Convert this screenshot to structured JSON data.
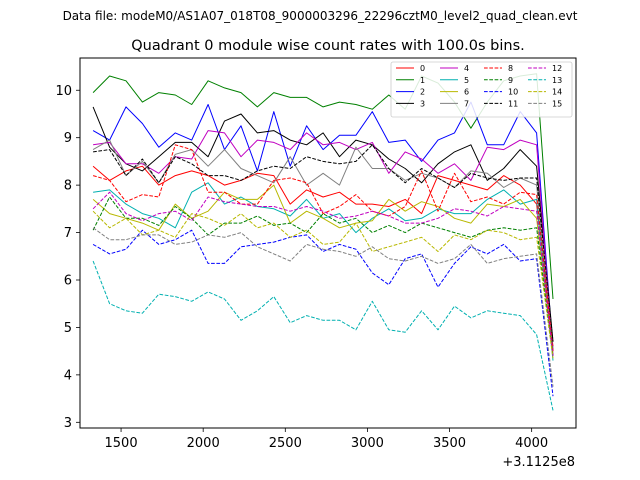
{
  "header": {
    "suptitle": "Data file: modeM0/AS1A07_018T08_9000003296_22296cztM0_level2_quad_clean.evt"
  },
  "chart_data": {
    "type": "line",
    "title": "Quadrant 0 module wise count rates with 100.0s bins.",
    "xlabel": "",
    "ylabel": "",
    "x_offset_label": "+3.1125e8",
    "xlim": [
      1250,
      4270
    ],
    "ylim": [
      2.88,
      10.68
    ],
    "xticks": [
      1500,
      2000,
      2500,
      3000,
      3500,
      4000
    ],
    "yticks": [
      3,
      4,
      5,
      6,
      7,
      8,
      9,
      10
    ],
    "grid": false,
    "legend_position": "top-right",
    "legend_columns": 4,
    "x": [
      1330,
      1430,
      1530,
      1630,
      1730,
      1830,
      1930,
      2030,
      2130,
      2230,
      2330,
      2430,
      2530,
      2630,
      2730,
      2830,
      2930,
      3030,
      3130,
      3230,
      3330,
      3430,
      3530,
      3630,
      3730,
      3830,
      3930,
      4030,
      4130
    ],
    "series": [
      {
        "name": "0",
        "color": "#ff0000",
        "dash": "solid",
        "values": [
          8.4,
          8.1,
          8.3,
          8.4,
          8.0,
          8.2,
          8.3,
          8.2,
          8.0,
          8.1,
          8.25,
          8.2,
          7.6,
          7.9,
          7.75,
          7.85,
          7.6,
          7.6,
          7.55,
          7.7,
          7.4,
          8.2,
          8.1,
          8.0,
          7.9,
          8.2,
          8.0,
          7.6,
          4.6
        ]
      },
      {
        "name": "1",
        "color": "#008000",
        "dash": "solid",
        "values": [
          9.95,
          10.3,
          10.2,
          9.75,
          9.95,
          9.9,
          9.7,
          10.2,
          10.05,
          9.95,
          9.65,
          9.95,
          9.85,
          9.85,
          9.65,
          9.75,
          9.7,
          9.6,
          9.9,
          9.6,
          10.3,
          10.15,
          9.75,
          9.2,
          9.75,
          10.2,
          10.3,
          10.35,
          5.6
        ]
      },
      {
        "name": "2",
        "color": "#0000ff",
        "dash": "solid",
        "values": [
          9.15,
          8.95,
          9.65,
          9.3,
          8.8,
          9.1,
          8.95,
          9.7,
          8.75,
          9.25,
          8.3,
          9.55,
          8.4,
          9.25,
          8.75,
          9.05,
          9.05,
          9.55,
          8.9,
          8.95,
          8.5,
          8.95,
          9.1,
          9.75,
          8.85,
          8.85,
          9.55,
          9.1,
          4.5
        ]
      },
      {
        "name": "3",
        "color": "#000000",
        "dash": "solid",
        "values": [
          9.65,
          8.8,
          8.45,
          8.3,
          8.6,
          8.9,
          8.9,
          8.6,
          9.35,
          9.5,
          9.1,
          9.15,
          8.95,
          8.85,
          9.1,
          8.6,
          8.95,
          8.85,
          8.55,
          8.35,
          8.05,
          8.45,
          8.7,
          8.85,
          8.1,
          8.35,
          8.75,
          8.4,
          4.7
        ]
      },
      {
        "name": "4",
        "color": "#c000c0",
        "dash": "solid",
        "values": [
          8.85,
          8.9,
          8.45,
          8.45,
          8.25,
          8.6,
          8.55,
          9.15,
          9.1,
          8.6,
          8.95,
          8.9,
          8.75,
          9.1,
          8.85,
          8.9,
          8.75,
          8.9,
          8.25,
          8.7,
          8.55,
          8.25,
          8.45,
          8.1,
          8.8,
          8.75,
          8.95,
          8.85,
          4.4
        ]
      },
      {
        "name": "5",
        "color": "#00b0b0",
        "dash": "solid",
        "values": [
          7.85,
          7.9,
          7.6,
          7.4,
          7.3,
          7.1,
          7.85,
          8.05,
          7.6,
          7.75,
          7.55,
          7.5,
          7.35,
          7.7,
          7.3,
          7.4,
          7.0,
          7.3,
          7.5,
          7.25,
          7.3,
          7.5,
          7.4,
          7.4,
          7.7,
          7.9,
          7.6,
          7.7,
          4.3
        ]
      },
      {
        "name": "6",
        "color": "#b8b800",
        "dash": "solid",
        "values": [
          7.7,
          7.4,
          7.3,
          7.2,
          7.05,
          7.6,
          7.3,
          7.45,
          7.85,
          7.7,
          7.7,
          8.0,
          7.2,
          7.45,
          7.3,
          7.1,
          7.2,
          7.25,
          7.7,
          7.45,
          7.65,
          7.55,
          7.3,
          7.2,
          7.6,
          7.55,
          7.7,
          7.3,
          4.5
        ]
      },
      {
        "name": "7",
        "color": "#808080",
        "dash": "solid",
        "values": [
          8.75,
          8.95,
          8.2,
          8.5,
          8.05,
          8.65,
          8.75,
          8.4,
          8.75,
          8.35,
          8.2,
          8.05,
          8.6,
          8.0,
          8.25,
          8.0,
          8.8,
          8.35,
          8.35,
          8.1,
          8.25,
          8.15,
          7.95,
          8.3,
          8.25,
          7.95,
          8.15,
          8.0,
          4.5
        ]
      },
      {
        "name": "8",
        "color": "#ff0000",
        "dash": "dashed",
        "values": [
          8.2,
          8.1,
          7.65,
          7.8,
          7.75,
          8.85,
          8.75,
          7.85,
          7.85,
          7.6,
          7.6,
          8.1,
          8.15,
          8.05,
          7.4,
          7.55,
          7.8,
          7.45,
          7.35,
          7.55,
          8.3,
          7.45,
          8.25,
          7.65,
          7.75,
          7.6,
          7.85,
          7.8,
          4.5
        ]
      },
      {
        "name": "9",
        "color": "#008000",
        "dash": "dashed",
        "values": [
          7.05,
          7.75,
          7.3,
          7.3,
          7.15,
          7.55,
          7.3,
          6.95,
          7.2,
          7.2,
          7.35,
          7.15,
          7.2,
          7.0,
          7.4,
          7.2,
          7.3,
          7.0,
          7.15,
          7.0,
          7.2,
          7.1,
          7.0,
          6.9,
          7.05,
          7.1,
          7.05,
          7.1,
          4.4
        ]
      },
      {
        "name": "10",
        "color": "#0000ff",
        "dash": "dashed",
        "values": [
          6.75,
          6.55,
          6.65,
          7.05,
          6.75,
          6.85,
          7.05,
          6.35,
          6.35,
          6.7,
          6.75,
          6.8,
          6.9,
          6.95,
          6.6,
          6.75,
          6.65,
          6.15,
          5.9,
          6.45,
          6.55,
          5.85,
          6.35,
          6.7,
          6.55,
          6.75,
          6.4,
          6.45,
          3.55
        ]
      },
      {
        "name": "11",
        "color": "#000000",
        "dash": "dashed",
        "values": [
          8.7,
          8.75,
          8.2,
          8.55,
          8.05,
          8.6,
          8.45,
          8.2,
          8.2,
          8.1,
          8.3,
          8.4,
          8.35,
          8.6,
          8.5,
          8.45,
          8.5,
          8.85,
          8.35,
          8.05,
          8.35,
          8.15,
          7.95,
          8.25,
          8.15,
          8.1,
          8.15,
          8.15,
          4.7
        ]
      },
      {
        "name": "12",
        "color": "#c000c0",
        "dash": "dashed",
        "values": [
          7.5,
          7.85,
          7.4,
          7.25,
          7.4,
          7.45,
          7.25,
          7.75,
          7.65,
          7.6,
          7.55,
          7.55,
          7.45,
          7.55,
          7.45,
          7.3,
          7.35,
          7.45,
          7.35,
          7.2,
          7.2,
          7.3,
          7.5,
          7.45,
          7.35,
          7.55,
          7.5,
          7.45,
          4.4
        ]
      },
      {
        "name": "13",
        "color": "#00b0b0",
        "dash": "dashed",
        "values": [
          6.4,
          5.5,
          5.35,
          5.3,
          5.7,
          5.65,
          5.55,
          5.75,
          5.6,
          5.15,
          5.35,
          5.65,
          5.1,
          5.25,
          5.15,
          5.15,
          4.95,
          5.55,
          4.95,
          4.9,
          5.35,
          4.95,
          5.45,
          5.2,
          5.35,
          5.3,
          5.25,
          4.85,
          3.25
        ]
      },
      {
        "name": "14",
        "color": "#b8b800",
        "dash": "dashed",
        "values": [
          7.45,
          7.1,
          7.3,
          6.95,
          7.05,
          6.9,
          7.4,
          7.3,
          7.15,
          7.4,
          7.1,
          7.2,
          6.9,
          7.05,
          6.75,
          6.8,
          7.2,
          6.6,
          6.7,
          6.8,
          6.9,
          6.6,
          6.95,
          6.85,
          7.05,
          7.0,
          6.85,
          6.9,
          4.35
        ]
      },
      {
        "name": "15",
        "color": "#808080",
        "dash": "dashed",
        "values": [
          7.1,
          6.85,
          6.85,
          6.95,
          6.95,
          6.75,
          6.8,
          6.95,
          6.9,
          7.0,
          6.7,
          6.55,
          6.4,
          6.75,
          6.65,
          6.6,
          6.5,
          6.7,
          6.45,
          6.4,
          6.5,
          6.35,
          6.45,
          6.75,
          6.35,
          6.45,
          6.5,
          6.55,
          3.75
        ]
      }
    ]
  }
}
